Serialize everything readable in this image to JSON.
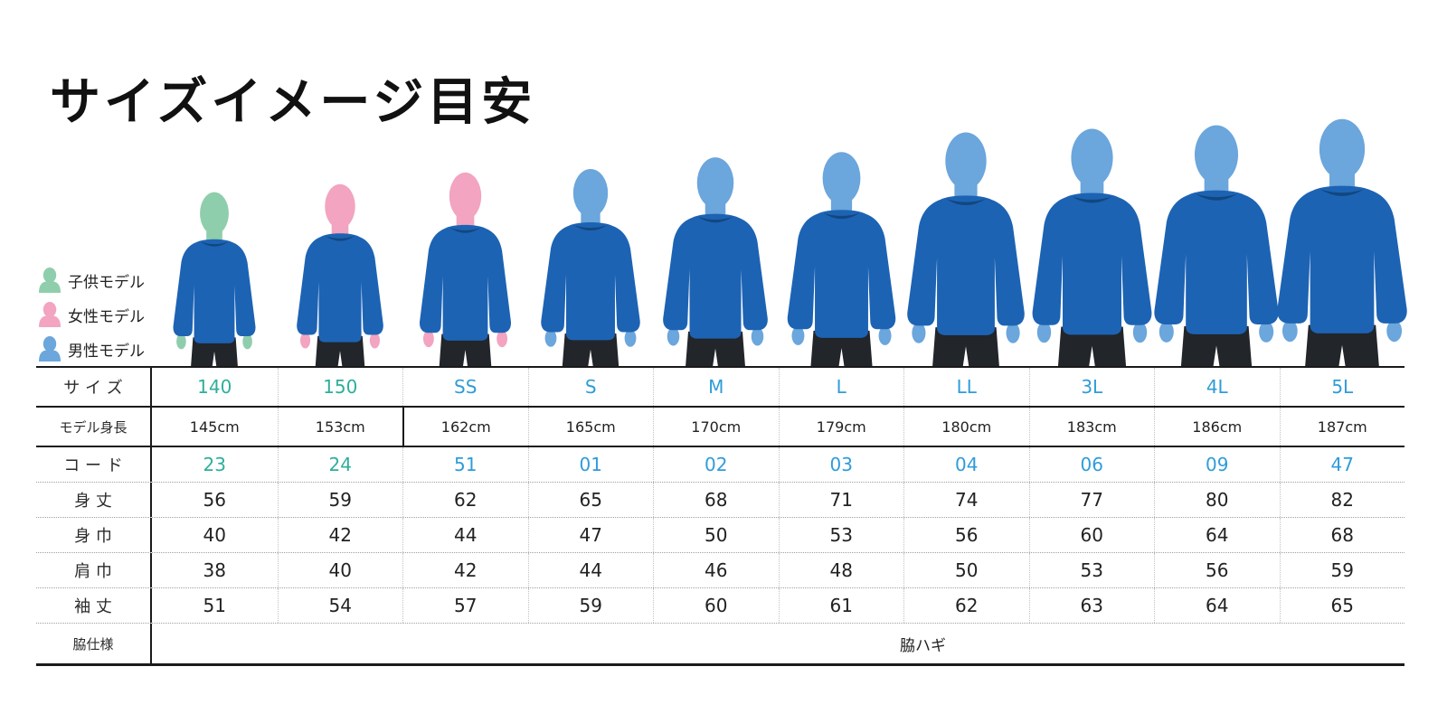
{
  "title": "サイズイメージ目安",
  "legend": {
    "items": [
      {
        "id": "child",
        "label": "子供モデル",
        "color": "#8fceac"
      },
      {
        "id": "female",
        "label": "女性モデル",
        "color": "#f2a4c1"
      },
      {
        "id": "male",
        "label": "男性モデル",
        "color": "#6ba6dc"
      }
    ]
  },
  "colors": {
    "shirt": "#1d63b4",
    "collar": "#12477f",
    "pants": "#22252a",
    "kids_accent": "#2fae9b",
    "adult_accent": "#2f9cd9",
    "border": "#1a1a1a"
  },
  "figures": [
    {
      "size": "140",
      "model": "child"
    },
    {
      "size": "150",
      "model": "female"
    },
    {
      "size": "SS",
      "model": "female"
    },
    {
      "size": "S",
      "model": "male"
    },
    {
      "size": "M",
      "model": "male"
    },
    {
      "size": "L",
      "model": "male"
    },
    {
      "size": "LL",
      "model": "male"
    },
    {
      "size": "3L",
      "model": "male"
    },
    {
      "size": "4L",
      "model": "male"
    },
    {
      "size": "5L",
      "model": "male"
    }
  ],
  "table": {
    "rows": [
      {
        "label": "サ イ ズ",
        "accent": true,
        "values": [
          "140",
          "150",
          "SS",
          "S",
          "M",
          "L",
          "LL",
          "3L",
          "4L",
          "5L"
        ]
      },
      {
        "label": "モデル身長",
        "accent": false,
        "cm": true,
        "values": [
          "145cm",
          "153cm",
          "162cm",
          "165cm",
          "170cm",
          "179cm",
          "180cm",
          "183cm",
          "186cm",
          "187cm"
        ]
      },
      {
        "label": "コ ー ド",
        "accent": true,
        "values": [
          "23",
          "24",
          "51",
          "01",
          "02",
          "03",
          "04",
          "06",
          "09",
          "47"
        ]
      },
      {
        "label": "身 丈",
        "accent": false,
        "values": [
          "56",
          "59",
          "62",
          "65",
          "68",
          "71",
          "74",
          "77",
          "80",
          "82"
        ]
      },
      {
        "label": "身 巾",
        "accent": false,
        "values": [
          "40",
          "42",
          "44",
          "47",
          "50",
          "53",
          "56",
          "60",
          "64",
          "68"
        ]
      },
      {
        "label": "肩 巾",
        "accent": false,
        "values": [
          "38",
          "40",
          "42",
          "44",
          "46",
          "48",
          "50",
          "53",
          "56",
          "59"
        ]
      },
      {
        "label": "袖 丈",
        "accent": false,
        "values": [
          "51",
          "54",
          "57",
          "59",
          "60",
          "61",
          "62",
          "63",
          "64",
          "65"
        ]
      },
      {
        "label": "脇仕様",
        "accent": false,
        "span_value": "脇ハギ"
      }
    ]
  }
}
